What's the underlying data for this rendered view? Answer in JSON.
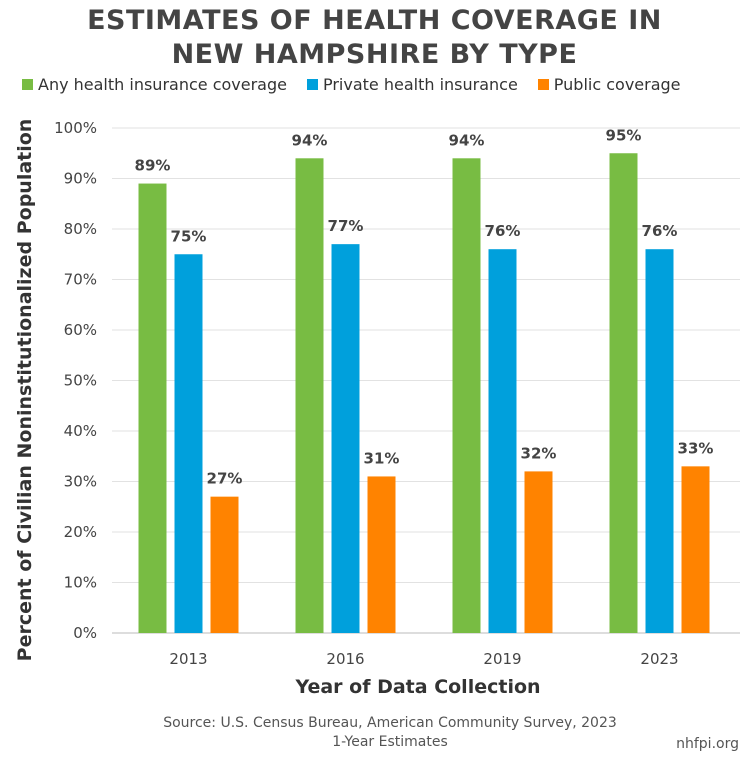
{
  "header": {
    "title_line1": "ESTIMATES OF HEALTH COVERAGE IN",
    "title_line2": "NEW HAMPSHIRE BY TYPE"
  },
  "footer": {
    "source_line1": "Source: U.S. Census Bureau, American Community Survey, 2023",
    "source_line2": "1-Year Estimates",
    "site": "nhfpi.org"
  },
  "chart_data": {
    "type": "bar",
    "categories": [
      "2013",
      "2016",
      "2019",
      "2023"
    ],
    "series": [
      {
        "name": "Any health insurance coverage",
        "values": [
          89,
          94,
          94,
          95
        ],
        "color": "#78bc43"
      },
      {
        "name": "Private health insurance",
        "values": [
          75,
          77,
          76,
          76
        ],
        "color": "#00a0dc"
      },
      {
        "name": "Public coverage",
        "values": [
          27,
          31,
          32,
          33
        ],
        "color": "#ff8300"
      }
    ],
    "data_labels": [
      [
        "89%",
        "94%",
        "94%",
        "95%"
      ],
      [
        "75%",
        "77%",
        "76%",
        "76%"
      ],
      [
        "27%",
        "31%",
        "32%",
        "33%"
      ]
    ],
    "xlabel": "Year of Data Collection",
    "ylabel": "Percent of Civilian Noninstitutionalized Population",
    "ylim": [
      0,
      100
    ],
    "yticks": [
      "0%",
      "10%",
      "20%",
      "30%",
      "40%",
      "50%",
      "60%",
      "70%",
      "80%",
      "90%",
      "100%"
    ],
    "grid": true,
    "legend_position": "top"
  }
}
